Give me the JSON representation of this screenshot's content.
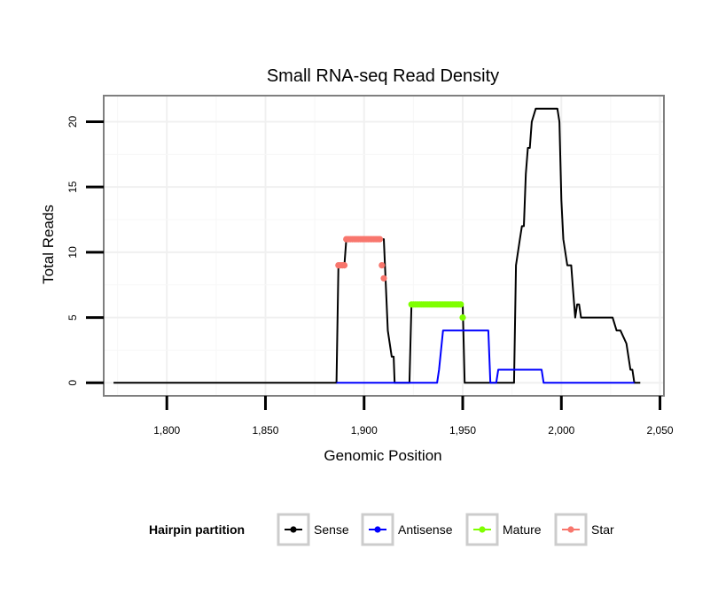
{
  "chart_data": {
    "type": "line",
    "title": "Small RNA-seq Read Density",
    "xlabel": "Genomic Position",
    "ylabel": "Total Reads",
    "xlim": [
      1768,
      2052
    ],
    "ylim": [
      -1,
      22
    ],
    "x_ticks": [
      1800,
      1850,
      1900,
      1950,
      2000,
      2050
    ],
    "x_tick_labels": [
      "1,800",
      "1,850",
      "1,900",
      "1,950",
      "2,000",
      "2,050"
    ],
    "y_ticks": [
      0,
      5,
      10,
      15,
      20
    ],
    "y_tick_labels": [
      "0",
      "5",
      "10",
      "15",
      "20"
    ],
    "grid": true,
    "legend": {
      "title": "Hairpin partition",
      "position": "bottom",
      "entries": [
        "Sense",
        "Antisense",
        "Mature",
        "Star"
      ]
    },
    "series": [
      {
        "name": "Sense",
        "color": "#000000",
        "style": "line",
        "x": [
          1773,
          1886,
          1887,
          1890,
          1891,
          1910,
          1912,
          1914,
          1915,
          1915.5,
          1923,
          1924,
          1950,
          1951,
          1976,
          1977,
          1979,
          1980,
          1981,
          1982,
          1983,
          1984,
          1985,
          1987,
          1988,
          1991,
          1993,
          1998,
          1999,
          2000,
          2001,
          2003,
          2005,
          2006,
          2007,
          2008,
          2009,
          2010,
          2025,
          2026,
          2028,
          2029,
          2030,
          2033,
          2035,
          2036,
          2037,
          2039,
          2040
        ],
        "y": [
          0,
          0,
          9,
          9,
          11,
          11,
          4,
          2,
          2,
          0,
          0,
          6,
          6,
          0,
          0,
          9,
          11,
          12,
          12,
          16,
          18,
          18,
          20,
          21,
          21,
          21,
          21,
          21,
          20,
          14,
          11,
          9,
          9,
          7,
          5,
          6,
          6,
          5,
          5,
          5,
          4,
          4,
          4,
          3,
          1,
          1,
          0,
          0,
          0
        ]
      },
      {
        "name": "Antisense",
        "color": "#0000ff",
        "style": "line",
        "x": [
          1886,
          1937,
          1938,
          1940,
          1963,
          1964,
          1967,
          1968,
          1990,
          1991,
          2037
        ],
        "y": [
          0,
          0,
          1,
          4,
          4,
          0,
          0,
          1,
          1,
          0,
          0
        ]
      },
      {
        "name": "Mature",
        "color": "#7fff00",
        "style": "points",
        "x": [
          1924,
          1925,
          1926,
          1927,
          1928,
          1929,
          1930,
          1931,
          1932,
          1933,
          1934,
          1935,
          1936,
          1937,
          1938,
          1939,
          1940,
          1941,
          1942,
          1943,
          1944,
          1945,
          1946,
          1947,
          1948,
          1949,
          1950
        ],
        "y": [
          6,
          6,
          6,
          6,
          6,
          6,
          6,
          6,
          6,
          6,
          6,
          6,
          6,
          6,
          6,
          6,
          6,
          6,
          6,
          6,
          6,
          6,
          6,
          6,
          6,
          6,
          5
        ]
      },
      {
        "name": "Star",
        "color": "#f8766d",
        "style": "points",
        "x": [
          1887,
          1888,
          1889,
          1890,
          1891,
          1892,
          1893,
          1894,
          1895,
          1896,
          1897,
          1898,
          1899,
          1900,
          1901,
          1902,
          1903,
          1904,
          1905,
          1906,
          1907,
          1908,
          1909,
          1910
        ],
        "y": [
          9,
          9,
          9,
          9,
          11,
          11,
          11,
          11,
          11,
          11,
          11,
          11,
          11,
          11,
          11,
          11,
          11,
          11,
          11,
          11,
          11,
          11,
          9,
          8
        ]
      }
    ]
  }
}
